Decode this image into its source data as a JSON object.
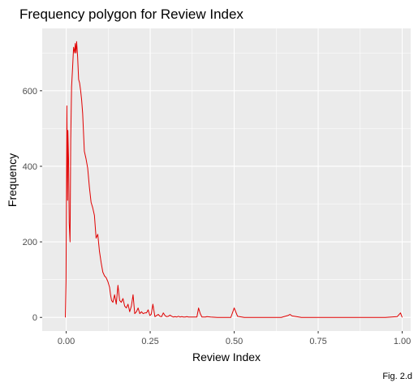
{
  "chart_data": {
    "type": "line",
    "title": "Frequency polygon for Review Index",
    "xlabel": "Review Index",
    "ylabel": "Frequency",
    "caption": "Fig. 2.d",
    "xlim": [
      -0.0714,
      1.0253
    ],
    "ylim": [
      -36,
      765
    ],
    "x_ticks": [
      0,
      0.25,
      0.5,
      0.75,
      1
    ],
    "x_tick_labels": [
      "0.00",
      "0.25",
      "0.50",
      "0.75",
      "1.00"
    ],
    "x_minor_ticks": [
      0.125,
      0.375,
      0.625,
      0.875
    ],
    "y_ticks": [
      0,
      200,
      400,
      600
    ],
    "y_tick_labels": [
      "0",
      "200",
      "400",
      "600"
    ],
    "y_minor_ticks": [
      100,
      300,
      500,
      700
    ],
    "grid": true,
    "colors": {
      "panel": "#ebebeb",
      "grid": "#ffffff",
      "line": "#e00000",
      "tick": "#333333"
    },
    "series": [
      {
        "name": "Review Index",
        "x": [
          -0.0025,
          -0.0005,
          0.002,
          0.004,
          0.005,
          0.007,
          0.009,
          0.0115,
          0.0135,
          0.016,
          0.019,
          0.022,
          0.025,
          0.027,
          0.029,
          0.031,
          0.034,
          0.037,
          0.04,
          0.043,
          0.046,
          0.049,
          0.054,
          0.059,
          0.064,
          0.069,
          0.074,
          0.079,
          0.084,
          0.089,
          0.094,
          0.099,
          0.104,
          0.109,
          0.114,
          0.119,
          0.124,
          0.129,
          0.132,
          0.135,
          0.139,
          0.144,
          0.149,
          0.154,
          0.159,
          0.164,
          0.169,
          0.174,
          0.179,
          0.184,
          0.189,
          0.194,
          0.199,
          0.204,
          0.209,
          0.214,
          0.219,
          0.224,
          0.229,
          0.234,
          0.239,
          0.244,
          0.249,
          0.253,
          0.258,
          0.264,
          0.269,
          0.274,
          0.279,
          0.284,
          0.289,
          0.294,
          0.299,
          0.304,
          0.309,
          0.314,
          0.319,
          0.324,
          0.329,
          0.334,
          0.339,
          0.344,
          0.349,
          0.354,
          0.359,
          0.364,
          0.369,
          0.374,
          0.379,
          0.384,
          0.389,
          0.394,
          0.399,
          0.404,
          0.409,
          0.414,
          0.419,
          0.43,
          0.45,
          0.47,
          0.49,
          0.5,
          0.51,
          0.53,
          0.56,
          0.6,
          0.64,
          0.66,
          0.666,
          0.672,
          0.7,
          0.75,
          0.8,
          0.85,
          0.9,
          0.95,
          0.985,
          0.995,
          1.0
        ],
        "values": [
          0,
          95,
          560,
          310,
          495,
          420,
          250,
          200,
          470,
          610,
          660,
          715,
          700,
          725,
          700,
          730,
          690,
          630,
          620,
          600,
          575,
          540,
          440,
          420,
          395,
          345,
          305,
          290,
          270,
          210,
          220,
          175,
          145,
          120,
          110,
          105,
          95,
          80,
          60,
          45,
          40,
          60,
          35,
          85,
          45,
          40,
          50,
          30,
          25,
          35,
          15,
          30,
          60,
          10,
          15,
          25,
          10,
          15,
          10,
          12,
          12,
          20,
          5,
          8,
          35,
          2,
          5,
          8,
          3,
          2,
          12,
          5,
          2,
          3,
          6,
          3,
          1,
          2,
          1,
          3,
          1,
          2,
          1,
          1,
          2,
          1,
          1,
          1,
          1,
          1,
          1,
          25,
          10,
          1,
          1,
          1,
          2,
          1,
          0,
          0,
          0,
          25,
          3,
          0,
          0,
          0,
          0,
          5,
          8,
          4,
          0,
          0,
          0,
          0,
          0,
          0,
          2,
          12,
          0
        ]
      }
    ]
  }
}
